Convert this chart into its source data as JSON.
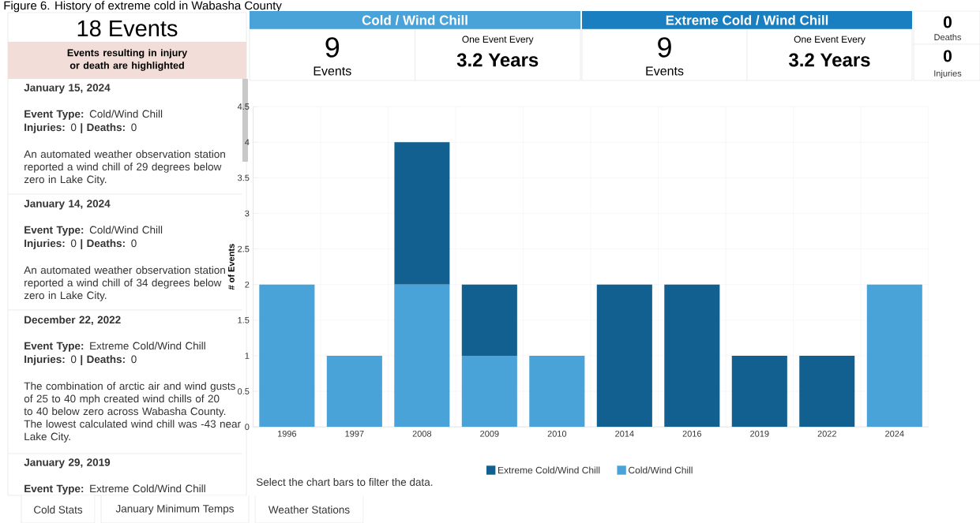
{
  "chart_data": [
    {
      "type": "other",
      "title": "Figure 6. History of extreme cold in Wabasha County",
      "annotations": [
        "18 Events",
        "Events resulting in injury or death are highlighted",
        "January 15, 2024",
        "**Event Type:** Cold/Wind Chill",
        "**Injuries:** 0 **|** **Deaths:** 0",
        "An automated weather observation station reported a wind chill of 29 degrees below zero in Lake City.",
        "January 14, 2024",
        "**Event Type:** Cold/Wind Chill",
        "**Injuries:** 0 **|** **Deaths:** 0",
        "An automated weather observation station reported a wind chill of 34 degrees below zero in Lake City.",
        "December 22, 2022",
        "**Event Type:** Extreme Cold/Wind Chill",
        "**Injuries:** 0 **|** **Deaths:** 0",
        "The combination of arctic air and wind gusts of 25 to 40 mph created wind chills of 20 to 40 below zero across Wabasha County. The lowest calculated wind chill was -43 near Lake City.",
        "January 29, 2019",
        "**Event Type:** Extreme Cold/Wind Chill",
        "Cold Stats",
        "January Minimum Temps",
        "Weather Stations"
      ]
    },
    {
      "type": "other",
      "annotations": [
        "Cold / Wind Chill",
        "9",
        "Events",
        "One Event Every",
        "3.2 Years",
        "Extreme Cold / Wind Chill",
        "9",
        "Events",
        "One Event Every",
        "3.2 Years",
        "0",
        "Deaths",
        "0",
        "Injuries"
      ]
    },
    {
      "type": "bar",
      "stacked": true,
      "ylabel": "# of Events",
      "categories": [
        "1996",
        "1997",
        "2008",
        "2009",
        "2010",
        "2014",
        "2016",
        "2019",
        "2022",
        "2024"
      ],
      "series": [
        {
          "name": "Cold/Wind Chill",
          "color": "#4aa3d8",
          "values": [
            2,
            1,
            2,
            1,
            1,
            0,
            0,
            0,
            0,
            2
          ]
        },
        {
          "name": "Extreme Cold/Wind Chill",
          "color": "#11608f",
          "values": [
            0,
            0,
            2,
            1,
            0,
            2,
            2,
            1,
            1,
            0
          ]
        }
      ],
      "ylim": [
        0,
        4.5
      ],
      "yticks": [
        0,
        0.5,
        1,
        1.5,
        2,
        2.5,
        3,
        3.5,
        4,
        4.5
      ],
      "grid": true,
      "legend": "bottom",
      "annotations": [
        "Select the chart bars to filter the data."
      ]
    }
  ]
}
